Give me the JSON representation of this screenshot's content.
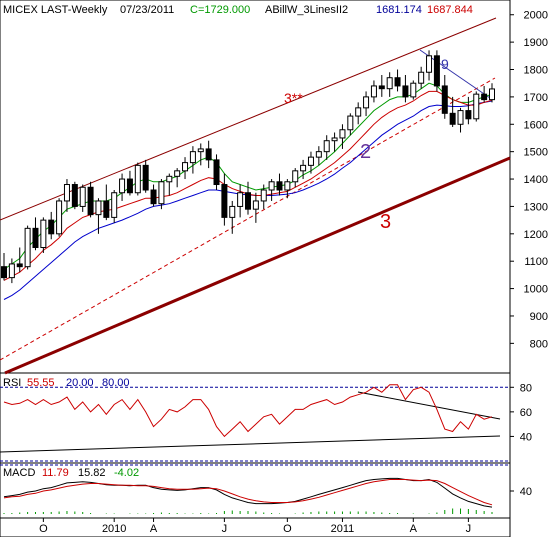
{
  "header": {
    "symbol": "MICEX LAST-Weekly",
    "date": "07/23/2011",
    "close": "C=1729.000",
    "indicator": "ABillW_3LinesII2",
    "indicator_value_1": "1681.174",
    "indicator_value_2": "1687.844"
  },
  "rsi_header": {
    "label": "RSI",
    "value": "55.55",
    "lower": "20.00",
    "upper": "80.00"
  },
  "macd_header": {
    "label": "MACD",
    "macd": "11.79",
    "signal": "15.82",
    "hist": "-4.02"
  },
  "colors": {
    "price_bar": "#000000",
    "ma_fast": "#cc0000",
    "ma_mid": "#009900",
    "ma_slow": "#0000cc",
    "channel": "#8b0000",
    "trend_thick": "#8b0000",
    "dashed": "#cc0000",
    "rsi_line": "#cc0000",
    "reference": "#000099",
    "annotation_2": "#663399",
    "annotation_3": "#cc0000",
    "annotation_9": "#3333aa",
    "macd_signal": "#cc0000",
    "macd_line": "#000000",
    "macd_hist": "#009900"
  },
  "annotations": {
    "a3star": "3**",
    "a2": "2",
    "a3": "3",
    "a9": "9"
  },
  "chart_data": [
    {
      "type": "candlestick",
      "panel": "price",
      "y_ticks": [
        800,
        900,
        1000,
        1100,
        1200,
        1300,
        1400,
        1500,
        1600,
        1700,
        1800,
        1900,
        2000
      ],
      "ylim": [
        710,
        2010
      ],
      "x_ticks": [
        "O",
        "2010",
        "A",
        "J",
        "O",
        "2011",
        "A",
        "J"
      ],
      "candles": [
        {
          "o": 1080,
          "h": 1130,
          "l": 1030,
          "c": 1040
        },
        {
          "o": 1040,
          "h": 1110,
          "l": 1020,
          "c": 1090
        },
        {
          "o": 1090,
          "h": 1150,
          "l": 1060,
          "c": 1080
        },
        {
          "o": 1080,
          "h": 1230,
          "l": 1070,
          "c": 1220
        },
        {
          "o": 1220,
          "h": 1260,
          "l": 1140,
          "c": 1150
        },
        {
          "o": 1150,
          "h": 1260,
          "l": 1130,
          "c": 1250
        },
        {
          "o": 1250,
          "h": 1280,
          "l": 1180,
          "c": 1200
        },
        {
          "o": 1200,
          "h": 1330,
          "l": 1190,
          "c": 1320
        },
        {
          "o": 1320,
          "h": 1400,
          "l": 1280,
          "c": 1380
        },
        {
          "o": 1380,
          "h": 1390,
          "l": 1290,
          "c": 1300
        },
        {
          "o": 1300,
          "h": 1380,
          "l": 1280,
          "c": 1370
        },
        {
          "o": 1370,
          "h": 1390,
          "l": 1260,
          "c": 1270
        },
        {
          "o": 1270,
          "h": 1330,
          "l": 1200,
          "c": 1320
        },
        {
          "o": 1320,
          "h": 1380,
          "l": 1250,
          "c": 1260
        },
        {
          "o": 1260,
          "h": 1360,
          "l": 1240,
          "c": 1350
        },
        {
          "o": 1350,
          "h": 1420,
          "l": 1320,
          "c": 1400
        },
        {
          "o": 1400,
          "h": 1430,
          "l": 1340,
          "c": 1350
        },
        {
          "o": 1350,
          "h": 1460,
          "l": 1340,
          "c": 1450
        },
        {
          "o": 1450,
          "h": 1470,
          "l": 1350,
          "c": 1360
        },
        {
          "o": 1360,
          "h": 1380,
          "l": 1300,
          "c": 1310
        },
        {
          "o": 1310,
          "h": 1400,
          "l": 1290,
          "c": 1390
        },
        {
          "o": 1390,
          "h": 1420,
          "l": 1340,
          "c": 1410
        },
        {
          "o": 1410,
          "h": 1440,
          "l": 1370,
          "c": 1430
        },
        {
          "o": 1430,
          "h": 1480,
          "l": 1400,
          "c": 1460
        },
        {
          "o": 1460,
          "h": 1520,
          "l": 1420,
          "c": 1500
        },
        {
          "o": 1500,
          "h": 1530,
          "l": 1450,
          "c": 1510
        },
        {
          "o": 1510,
          "h": 1540,
          "l": 1440,
          "c": 1470
        },
        {
          "o": 1470,
          "h": 1490,
          "l": 1360,
          "c": 1380
        },
        {
          "o": 1380,
          "h": 1420,
          "l": 1230,
          "c": 1260
        },
        {
          "o": 1260,
          "h": 1320,
          "l": 1200,
          "c": 1300
        },
        {
          "o": 1300,
          "h": 1380,
          "l": 1260,
          "c": 1350
        },
        {
          "o": 1350,
          "h": 1390,
          "l": 1270,
          "c": 1290
        },
        {
          "o": 1290,
          "h": 1350,
          "l": 1240,
          "c": 1320
        },
        {
          "o": 1320,
          "h": 1380,
          "l": 1290,
          "c": 1360
        },
        {
          "o": 1360,
          "h": 1400,
          "l": 1320,
          "c": 1390
        },
        {
          "o": 1390,
          "h": 1420,
          "l": 1340,
          "c": 1360
        },
        {
          "o": 1360,
          "h": 1400,
          "l": 1330,
          "c": 1390
        },
        {
          "o": 1390,
          "h": 1440,
          "l": 1370,
          "c": 1430
        },
        {
          "o": 1430,
          "h": 1470,
          "l": 1400,
          "c": 1450
        },
        {
          "o": 1450,
          "h": 1500,
          "l": 1420,
          "c": 1480
        },
        {
          "o": 1480,
          "h": 1520,
          "l": 1450,
          "c": 1500
        },
        {
          "o": 1500,
          "h": 1560,
          "l": 1470,
          "c": 1540
        },
        {
          "o": 1540,
          "h": 1570,
          "l": 1500,
          "c": 1550
        },
        {
          "o": 1550,
          "h": 1600,
          "l": 1510,
          "c": 1580
        },
        {
          "o": 1580,
          "h": 1640,
          "l": 1560,
          "c": 1630
        },
        {
          "o": 1630,
          "h": 1680,
          "l": 1600,
          "c": 1660
        },
        {
          "o": 1660,
          "h": 1720,
          "l": 1630,
          "c": 1700
        },
        {
          "o": 1700,
          "h": 1760,
          "l": 1680,
          "c": 1740
        },
        {
          "o": 1740,
          "h": 1780,
          "l": 1700,
          "c": 1730
        },
        {
          "o": 1730,
          "h": 1790,
          "l": 1700,
          "c": 1770
        },
        {
          "o": 1770,
          "h": 1800,
          "l": 1720,
          "c": 1740
        },
        {
          "o": 1740,
          "h": 1780,
          "l": 1680,
          "c": 1700
        },
        {
          "o": 1700,
          "h": 1760,
          "l": 1690,
          "c": 1750
        },
        {
          "o": 1750,
          "h": 1810,
          "l": 1730,
          "c": 1790
        },
        {
          "o": 1790,
          "h": 1870,
          "l": 1760,
          "c": 1850
        },
        {
          "o": 1850,
          "h": 1870,
          "l": 1720,
          "c": 1740
        },
        {
          "o": 1740,
          "h": 1780,
          "l": 1620,
          "c": 1640
        },
        {
          "o": 1640,
          "h": 1700,
          "l": 1590,
          "c": 1600
        },
        {
          "o": 1600,
          "h": 1660,
          "l": 1570,
          "c": 1650
        },
        {
          "o": 1650,
          "h": 1700,
          "l": 1600,
          "c": 1620
        },
        {
          "o": 1620,
          "h": 1720,
          "l": 1610,
          "c": 1710
        },
        {
          "o": 1710,
          "h": 1740,
          "l": 1680,
          "c": 1690
        },
        {
          "o": 1690,
          "h": 1750,
          "l": 1680,
          "c": 1729
        }
      ],
      "ma_fast": [
        1030,
        1045,
        1060,
        1085,
        1110,
        1140,
        1160,
        1185,
        1220,
        1240,
        1260,
        1270,
        1280,
        1285,
        1290,
        1300,
        1310,
        1320,
        1330,
        1330,
        1335,
        1340,
        1350,
        1365,
        1380,
        1395,
        1405,
        1400,
        1380,
        1365,
        1355,
        1345,
        1340,
        1340,
        1345,
        1350,
        1355,
        1370,
        1385,
        1400,
        1420,
        1440,
        1460,
        1485,
        1510,
        1540,
        1570,
        1600,
        1625,
        1645,
        1660,
        1670,
        1685,
        1705,
        1720,
        1720,
        1705,
        1690,
        1680,
        1670,
        1670,
        1680,
        1688
      ],
      "ma_mid": [
        1070,
        1090,
        1110,
        1150,
        1180,
        1210,
        1230,
        1260,
        1290,
        1300,
        1310,
        1320,
        1320,
        1320,
        1330,
        1350,
        1370,
        1390,
        1400,
        1390,
        1390,
        1400,
        1410,
        1430,
        1450,
        1470,
        1480,
        1460,
        1420,
        1390,
        1380,
        1370,
        1360,
        1365,
        1370,
        1375,
        1380,
        1395,
        1415,
        1430,
        1450,
        1475,
        1500,
        1530,
        1560,
        1590,
        1620,
        1650,
        1670,
        1690,
        1700,
        1700,
        1710,
        1730,
        1750,
        1740,
        1710,
        1690,
        1680,
        1680,
        1690,
        1700,
        1710
      ],
      "ma_slow": [
        960,
        975,
        995,
        1020,
        1045,
        1070,
        1095,
        1120,
        1145,
        1170,
        1190,
        1205,
        1220,
        1230,
        1240,
        1250,
        1262,
        1275,
        1290,
        1300,
        1305,
        1310,
        1320,
        1330,
        1340,
        1350,
        1360,
        1360,
        1355,
        1350,
        1345,
        1342,
        1340,
        1340,
        1340,
        1342,
        1345,
        1350,
        1360,
        1372,
        1385,
        1400,
        1418,
        1440,
        1460,
        1485,
        1510,
        1535,
        1560,
        1580,
        1600,
        1615,
        1630,
        1650,
        1665,
        1670,
        1668,
        1665,
        1665,
        1668,
        1675,
        1680,
        1685
      ]
    },
    {
      "type": "line",
      "panel": "rsi",
      "name": "RSI",
      "y_ticks": [
        40,
        60,
        80
      ],
      "ylim": [
        20,
        90
      ],
      "values": [
        68,
        66,
        67,
        70,
        66,
        70,
        66,
        68,
        72,
        62,
        68,
        60,
        66,
        58,
        66,
        70,
        62,
        70,
        60,
        48,
        54,
        62,
        60,
        64,
        70,
        70,
        62,
        48,
        40,
        46,
        52,
        44,
        50,
        56,
        58,
        50,
        56,
        62,
        62,
        66,
        68,
        70,
        66,
        68,
        72,
        74,
        76,
        80,
        76,
        82,
        82,
        70,
        78,
        80,
        76,
        62,
        46,
        44,
        52,
        46,
        58,
        54,
        56
      ]
    },
    {
      "type": "line",
      "panel": "macd",
      "name": "MACD",
      "y_ticks": [
        40
      ],
      "ylim": [
        0,
        80
      ],
      "macd": [
        30,
        32,
        34,
        38,
        40,
        44,
        46,
        50,
        54,
        55,
        56,
        55,
        53,
        51,
        50,
        50,
        49,
        50,
        50,
        46,
        43,
        42,
        41,
        42,
        44,
        46,
        46,
        42,
        34,
        28,
        24,
        20,
        18,
        18,
        18,
        19,
        20,
        22,
        26,
        30,
        34,
        38,
        42,
        46,
        50,
        54,
        58,
        60,
        61,
        62,
        62,
        60,
        58,
        58,
        60,
        55,
        45,
        35,
        28,
        22,
        18,
        14,
        12
      ],
      "signal": [
        28,
        30,
        31,
        34,
        36,
        40,
        42,
        45,
        48,
        50,
        52,
        53,
        53,
        52,
        51,
        50,
        50,
        49,
        49,
        48,
        46,
        44,
        43,
        43,
        43,
        44,
        45,
        44,
        40,
        35,
        30,
        26,
        23,
        21,
        20,
        20,
        20,
        21,
        23,
        26,
        29,
        33,
        37,
        41,
        45,
        49,
        53,
        56,
        58,
        60,
        60,
        60,
        59,
        58,
        59,
        58,
        53,
        46,
        39,
        32,
        26,
        20,
        16
      ]
    }
  ]
}
